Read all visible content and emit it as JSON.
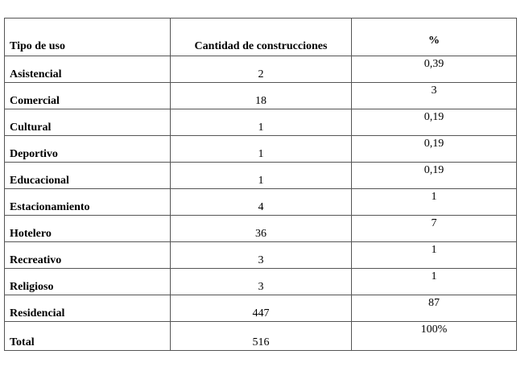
{
  "table": {
    "headers": [
      "Tipo de uso",
      "Cantidad  de construcciones",
      "%"
    ],
    "rows": [
      {
        "tipo": "Asistencial",
        "cantidad": "2",
        "pct": "0,39"
      },
      {
        "tipo": "Comercial",
        "cantidad": "18",
        "pct": "3"
      },
      {
        "tipo": "Cultural",
        "cantidad": "1",
        "pct": "0,19"
      },
      {
        "tipo": "Deportivo",
        "cantidad": "1",
        "pct": "0,19"
      },
      {
        "tipo": "Educacional",
        "cantidad": "1",
        "pct": "0,19"
      },
      {
        "tipo": "Estacionamiento",
        "cantidad": "4",
        "pct": "1"
      },
      {
        "tipo": "Hotelero",
        "cantidad": "36",
        "pct": "7"
      },
      {
        "tipo": "Recreativo",
        "cantidad": "3",
        "pct": "1"
      },
      {
        "tipo": "Religioso",
        "cantidad": "3",
        "pct": "1"
      },
      {
        "tipo": "Residencial",
        "cantidad": "447",
        "pct": "87"
      }
    ],
    "total": {
      "tipo": "Total",
      "cantidad": "516",
      "pct": "100%"
    }
  }
}
